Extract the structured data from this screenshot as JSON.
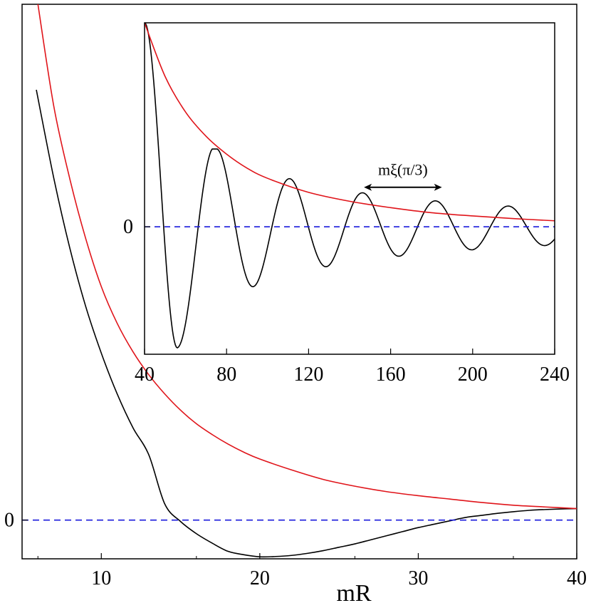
{
  "chart_data": [
    {
      "panel": "main",
      "type": "line",
      "xlabel": "mR",
      "ylabel": "",
      "xlim": [
        5,
        40
      ],
      "ylim": [
        -0.285,
        3.8
      ],
      "x_ticks": [
        10,
        20,
        30,
        40
      ],
      "y_ticks": [
        {
          "value": 0,
          "label": "0"
        }
      ],
      "grid": false,
      "series": [
        {
          "color": "#000000",
          "style": "solid",
          "points": [
            [
              5.9,
              3.17
            ],
            [
              7,
              2.52
            ],
            [
              8,
              2.01
            ],
            [
              9,
              1.58
            ],
            [
              10,
              1.23
            ],
            [
              11,
              0.93
            ],
            [
              12,
              0.68
            ],
            [
              13,
              0.48
            ],
            [
              14,
              0.12
            ],
            [
              15,
              -0.01
            ],
            [
              16,
              -0.1
            ],
            [
              17,
              -0.17
            ],
            [
              18,
              -0.23
            ],
            [
              19,
              -0.255
            ],
            [
              20,
              -0.27
            ],
            [
              21,
              -0.268
            ],
            [
              22,
              -0.26
            ],
            [
              23,
              -0.245
            ],
            [
              24,
              -0.225
            ],
            [
              25,
              -0.2
            ],
            [
              26,
              -0.175
            ],
            [
              27,
              -0.145
            ],
            [
              28,
              -0.115
            ],
            [
              29,
              -0.085
            ],
            [
              30,
              -0.055
            ],
            [
              31,
              -0.03
            ],
            [
              32,
              -0.005
            ],
            [
              33,
              0.02
            ],
            [
              34,
              0.035
            ],
            [
              35,
              0.05
            ],
            [
              36,
              0.062
            ],
            [
              37,
              0.072
            ],
            [
              38,
              0.078
            ],
            [
              39,
              0.082
            ],
            [
              40,
              0.085
            ]
          ]
        },
        {
          "color": "#e0141a",
          "style": "solid",
          "points": [
            [
              6,
              3.8
            ],
            [
              7,
              3.05
            ],
            [
              8,
              2.52
            ],
            [
              9,
              2.08
            ],
            [
              10,
              1.72
            ],
            [
              11,
              1.45
            ],
            [
              12,
              1.24
            ],
            [
              13,
              1.07
            ],
            [
              14,
              0.93
            ],
            [
              15,
              0.81
            ],
            [
              16,
              0.71
            ],
            [
              17,
              0.63
            ],
            [
              18,
              0.56
            ],
            [
              19,
              0.5
            ],
            [
              20,
              0.45
            ],
            [
              22,
              0.37
            ],
            [
              24,
              0.3
            ],
            [
              26,
              0.25
            ],
            [
              28,
              0.21
            ],
            [
              30,
              0.18
            ],
            [
              32,
              0.155
            ],
            [
              34,
              0.13
            ],
            [
              36,
              0.11
            ],
            [
              38,
              0.097
            ],
            [
              40,
              0.085
            ]
          ]
        },
        {
          "color": "#1a1adc",
          "style": "dashed",
          "points": [
            [
              5,
              0
            ],
            [
              40,
              0
            ]
          ]
        }
      ]
    },
    {
      "panel": "inset",
      "type": "line",
      "xlabel": "",
      "ylabel": "",
      "xlim": [
        40,
        240
      ],
      "ylim": [
        -1.0,
        1.6
      ],
      "x_ticks": [
        40,
        80,
        120,
        160,
        200,
        240
      ],
      "y_ticks": [
        {
          "value": 0,
          "label": "0"
        }
      ],
      "grid": false,
      "annotation": {
        "text": "mξ(π/3)",
        "arrow_from": 147,
        "arrow_to": 185,
        "arrow_y": 0.31
      },
      "series": [
        {
          "color": "#000000",
          "style": "damped-oscillation",
          "start": [
            40,
            1.6
          ],
          "period": 35.5,
          "first_peak_x": 75.5,
          "envelope_exponent": 1.25,
          "envelope_scale": 0.61,
          "envelope_ref_x": 75.5
        },
        {
          "color": "#e0141a",
          "style": "envelope",
          "points": [
            [
              40,
              1.6
            ],
            [
              50,
              1.18
            ],
            [
              60,
              0.9
            ],
            [
              70,
              0.71
            ],
            [
              80,
              0.57
            ],
            [
              90,
              0.46
            ],
            [
              100,
              0.38
            ],
            [
              120,
              0.27
            ],
            [
              140,
              0.2
            ],
            [
              160,
              0.15
            ],
            [
              180,
              0.11
            ],
            [
              200,
              0.085
            ],
            [
              220,
              0.064
            ],
            [
              240,
              0.047
            ]
          ]
        },
        {
          "color": "#1a1adc",
          "style": "dashed",
          "points": [
            [
              40,
              0
            ],
            [
              240,
              0
            ]
          ]
        }
      ]
    }
  ]
}
